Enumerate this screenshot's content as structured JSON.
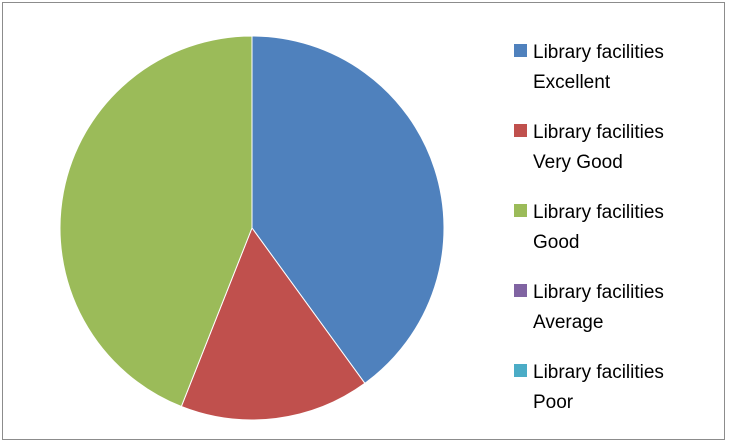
{
  "chart_data": {
    "type": "pie",
    "categories": [
      "Library facilities Excellent",
      "Library facilities Very Good",
      "Library facilities Good",
      "Library facilities Average",
      "Library facilities Poor"
    ],
    "values": [
      40,
      16,
      44,
      0,
      0
    ],
    "colors": [
      "#4f81bd",
      "#c0504d",
      "#9bbb59",
      "#8064a2",
      "#4bacc6"
    ],
    "legend": "right"
  }
}
